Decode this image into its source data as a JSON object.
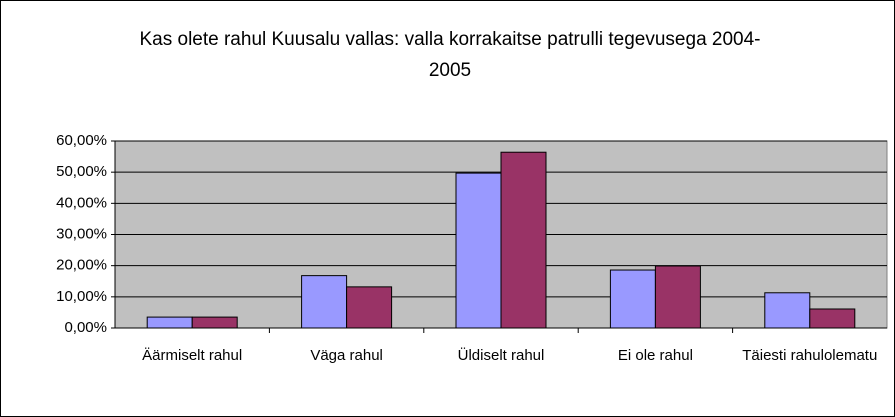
{
  "chart_data": {
    "type": "bar",
    "title": "Kas olete rahul Kuusalu vallas: valla korrakaitse patrulli tegevusega 2004-2005",
    "categories": [
      "Äärmiselt rahul",
      "Väga rahul",
      "Üldiselt rahul",
      "Ei ole rahul",
      "Täiesti rahulolematu"
    ],
    "series": [
      {
        "color": "#9999ff",
        "values": [
          3.5,
          16.8,
          49.7,
          18.6,
          11.3
        ]
      },
      {
        "color": "#993366",
        "values": [
          3.5,
          13.2,
          56.4,
          19.9,
          6.1
        ]
      }
    ],
    "ylim": [
      0,
      60
    ],
    "yticks": [
      {
        "value": 0,
        "label": "0,00%"
      },
      {
        "value": 10,
        "label": "10,00%"
      },
      {
        "value": 20,
        "label": "20,00%"
      },
      {
        "value": 30,
        "label": "30,00%"
      },
      {
        "value": 40,
        "label": "40,00%"
      },
      {
        "value": 50,
        "label": "50,00%"
      },
      {
        "value": 60,
        "label": "60,00%"
      }
    ],
    "grid": true
  }
}
